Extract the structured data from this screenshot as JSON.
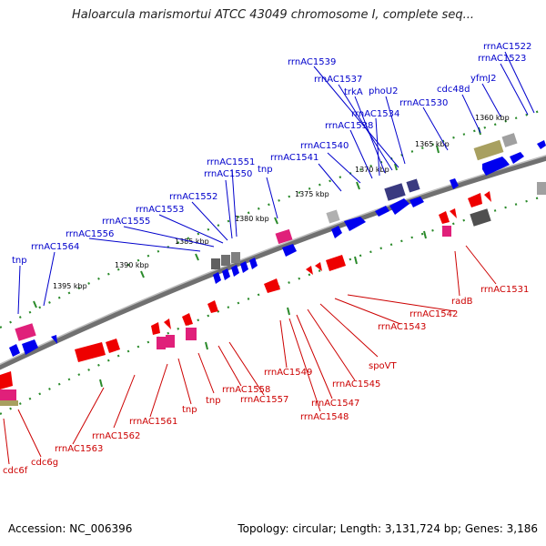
{
  "title": "Haloarcula marismortui ATCC 43049 chromosome I, complete seq...",
  "footer": {
    "accession": "Accession: NC_006396",
    "summary": "Topology: circular; Length: 3,131,724 bp; Genes: 3,186"
  },
  "colors": {
    "forward_gene": "#0000ee",
    "reverse_gene": "#ee0000",
    "rna_gene": "#e0207a",
    "pseudo_gene": "#808080",
    "other_gene": "#3a3a80",
    "misc_feature": "#a8a060",
    "backbone": "#707070",
    "tick": "#2a8a2a"
  },
  "ticks": [
    {
      "label": "1360 kbp"
    },
    {
      "label": "1365 kbp"
    },
    {
      "label": "1370 kbp"
    },
    {
      "label": "1375 kbp"
    },
    {
      "label": "1380 kbp"
    },
    {
      "label": "1385 kbp"
    },
    {
      "label": "1390 kbp"
    },
    {
      "label": "1395 kbp"
    }
  ],
  "upper_labels": [
    "rrnAC1522",
    "rrnAC1523",
    "yfmJ2",
    "cdc48d",
    "rrnAC1530",
    "phoU2",
    "rrnAC1539",
    "rrnAC1537",
    "trkA",
    "rrnAC1534",
    "rrnAC1538",
    "rrnAC1540",
    "rrnAC1541",
    "tnp",
    "rrnAC1551",
    "rrnAC1550",
    "rrnAC1552",
    "rrnAC1553",
    "rrnAC1555",
    "rrnAC1556",
    "rrnAC1564",
    "tnp"
  ],
  "lower_labels": [
    "rrnAC1531",
    "radB",
    "rrnAC1542",
    "rrnAC1543",
    "spoVT",
    "rrnAC1545",
    "rrnAC1547",
    "rrnAC1548",
    "rrnAC1549",
    "rrnAC1557",
    "rrnAC1558",
    "tnp",
    "tnp",
    "rrnAC1561",
    "rrnAC1562",
    "rrnAC1563",
    "cdc6g",
    "cdc6f"
  ]
}
